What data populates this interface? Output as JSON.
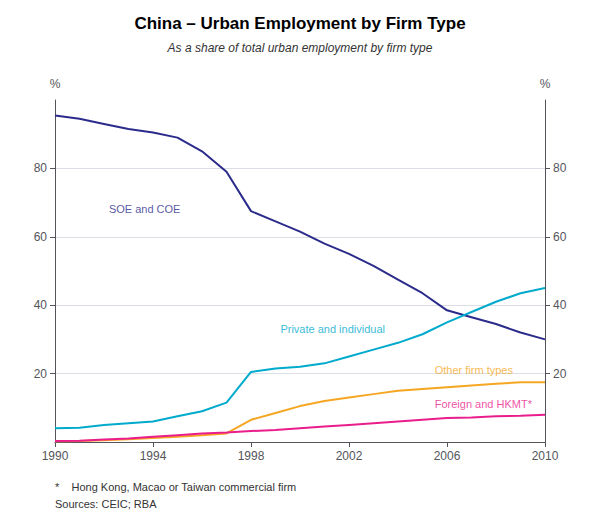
{
  "chart_data": {
    "type": "line",
    "title": "China – Urban Employment by Firm Type",
    "subtitle": "As a share of total urban employment by firm type",
    "ylabel": "%",
    "y2label": "%",
    "footnotes": [
      "*    Hong Kong, Macao or Taiwan commercial firm",
      "Sources: CEIC; RBA"
    ],
    "x": [
      1990,
      1991,
      1992,
      1993,
      1994,
      1995,
      1996,
      1997,
      1998,
      1999,
      2000,
      2001,
      2002,
      2003,
      2004,
      2005,
      2006,
      2007,
      2008,
      2009,
      2010
    ],
    "xlim": [
      1990,
      2010
    ],
    "xticks": [
      1990,
      1994,
      1998,
      2002,
      2006,
      2010
    ],
    "ylim": [
      0,
      100
    ],
    "yticks": [
      20,
      40,
      60,
      80
    ],
    "y2lim": [
      0,
      100
    ],
    "y2ticks": [
      20,
      40,
      60,
      80
    ],
    "grid": true,
    "series": [
      {
        "name": "SOE and COE",
        "color": "#2b2b8c",
        "values": [
          95.5,
          94.5,
          93.0,
          91.5,
          90.5,
          89.0,
          85.0,
          79.0,
          67.5,
          64.5,
          61.5,
          58.0,
          55.0,
          51.5,
          47.5,
          43.5,
          38.5,
          36.5,
          34.5,
          32.0,
          30.0
        ]
      },
      {
        "name": "Private and individual",
        "color": "#00aacc",
        "values": [
          4.0,
          4.2,
          5.0,
          5.5,
          6.0,
          7.5,
          9.0,
          11.5,
          20.5,
          21.5,
          22.0,
          23.0,
          25.0,
          27.0,
          29.0,
          31.5,
          35.0,
          38.0,
          41.0,
          43.5,
          45.0
        ]
      },
      {
        "name": "Other firm types",
        "color": "#f5a623",
        "values": [
          0.2,
          0.3,
          0.5,
          0.8,
          1.2,
          1.5,
          2.0,
          2.5,
          6.5,
          8.5,
          10.5,
          12.0,
          13.0,
          14.0,
          15.0,
          15.5,
          16.0,
          16.5,
          17.0,
          17.5,
          17.5
        ]
      },
      {
        "name": "Foreign and HKMT*",
        "color": "#e91e8c",
        "values": [
          0.3,
          0.4,
          0.7,
          1.0,
          1.5,
          2.0,
          2.5,
          2.8,
          3.2,
          3.5,
          4.0,
          4.5,
          5.0,
          5.5,
          6.0,
          6.5,
          7.0,
          7.2,
          7.5,
          7.7,
          8.0
        ]
      }
    ],
    "annotations": [
      {
        "text": "SOE and COE",
        "x": 1992.2,
        "y": 68,
        "color": "#2b2b8c"
      },
      {
        "text": "Private and individual",
        "x": 1999.2,
        "y": 33,
        "color": "#00aacc"
      },
      {
        "text": "Other firm types",
        "x": 2005.5,
        "y": 21,
        "color": "#f5a623"
      },
      {
        "text": "Foreign and HKMT*",
        "x": 2005.5,
        "y": 11,
        "color": "#e91e8c"
      }
    ]
  }
}
